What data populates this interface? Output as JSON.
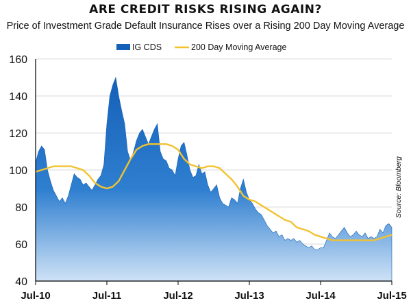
{
  "title": "ARE CREDIT RISKS RISING AGAIN?",
  "subtitle": "Price of Investment Grade Default Insurance Rises over a Rising 200 Day Moving Average",
  "source": "Source: Bloomberg",
  "colors": {
    "area_top": "#1560b8",
    "area_bottom": "#cfe2f6",
    "average": "#f2c230",
    "grid": "#d9d9d9",
    "axis": "#000000"
  },
  "chart_data": {
    "type": "area",
    "xlabel": "",
    "ylabel": "",
    "ylim": [
      40,
      160
    ],
    "yticks": [
      40,
      60,
      80,
      100,
      120,
      140,
      160
    ],
    "xticks": [
      {
        "label": "Jul-10",
        "t": 0
      },
      {
        "label": "Jul-11",
        "t": 12
      },
      {
        "label": "Jul-12",
        "t": 24
      },
      {
        "label": "Jul-13",
        "t": 36
      },
      {
        "label": "Jul-14",
        "t": 48
      },
      {
        "label": "Jul-15",
        "t": 60
      }
    ],
    "xlim": [
      0,
      60
    ],
    "legend_position": "top-center",
    "grid": "horizontal",
    "series": [
      {
        "name": "IG CDS",
        "kind": "area",
        "x": [
          0,
          0.5,
          1,
          1.5,
          2,
          2.5,
          3,
          3.5,
          4,
          4.5,
          5,
          5.5,
          6,
          6.5,
          7,
          7.5,
          8,
          8.5,
          9,
          9.5,
          10,
          10.5,
          11,
          11.5,
          12,
          12.5,
          13,
          13.5,
          14,
          14.5,
          15,
          15.5,
          16,
          16.5,
          17,
          17.5,
          18,
          18.5,
          19,
          19.5,
          20,
          20.5,
          21,
          21.5,
          22,
          22.5,
          23,
          23.5,
          24,
          24.5,
          25,
          25.5,
          26,
          26.5,
          27,
          27.5,
          28,
          28.5,
          29,
          29.5,
          30,
          30.5,
          31,
          31.5,
          32,
          32.5,
          33,
          33.5,
          34,
          34.5,
          35,
          35.5,
          36,
          36.5,
          37,
          37.5,
          38,
          38.5,
          39,
          39.5,
          40,
          40.5,
          41,
          41.5,
          42,
          42.5,
          43,
          43.5,
          44,
          44.5,
          45,
          45.5,
          46,
          46.5,
          47,
          47.5,
          48,
          48.5,
          49,
          49.5,
          50,
          50.5,
          51,
          51.5,
          52,
          52.5,
          53,
          53.5,
          54,
          54.5,
          55,
          55.5,
          56,
          56.5,
          57,
          57.5,
          58,
          58.5,
          59,
          59.5,
          60
        ],
        "values": [
          104,
          110,
          113,
          111,
          100,
          94,
          89,
          86,
          83,
          85,
          82,
          86,
          92,
          98,
          96,
          95,
          92,
          93,
          91,
          89,
          92,
          95,
          97,
          103,
          125,
          140,
          146,
          150,
          140,
          132,
          125,
          110,
          105,
          110,
          116,
          120,
          122,
          118,
          114,
          118,
          122,
          125,
          110,
          106,
          105,
          101,
          100,
          97,
          106,
          113,
          115,
          108,
          100,
          96,
          97,
          103,
          98,
          99,
          92,
          88,
          90,
          92,
          85,
          82,
          81,
          80,
          85,
          84,
          82,
          90,
          95,
          88,
          84,
          82,
          79,
          77,
          76,
          73,
          70,
          68,
          66,
          67,
          64,
          65,
          62,
          63,
          62,
          63,
          61,
          62,
          60,
          59,
          58,
          59,
          57,
          57,
          58,
          58,
          62,
          66,
          64,
          63,
          65,
          67,
          69,
          66,
          64,
          65,
          67,
          65,
          64,
          66,
          63,
          64,
          63,
          64,
          68,
          66,
          70,
          71,
          69
        ]
      },
      {
        "name": "200 Day Moving Average",
        "kind": "line",
        "x": [
          0,
          1,
          2,
          3,
          4,
          5,
          6,
          7,
          8,
          9,
          10,
          11,
          12,
          13,
          14,
          15,
          16,
          17,
          18,
          19,
          20,
          21,
          22,
          23,
          24,
          25,
          26,
          27,
          28,
          29,
          30,
          31,
          32,
          33,
          34,
          35,
          36,
          37,
          38,
          39,
          40,
          41,
          42,
          43,
          44,
          45,
          46,
          47,
          48,
          49,
          50,
          51,
          52,
          53,
          54,
          55,
          56,
          57,
          58,
          59,
          60
        ],
        "values": [
          99,
          100,
          101,
          102,
          102,
          102,
          102,
          101,
          100,
          97,
          93,
          91,
          90,
          91,
          94,
          100,
          106,
          111,
          113,
          114,
          114,
          114,
          114,
          113,
          111,
          106,
          103,
          102,
          101,
          102,
          102,
          101,
          98,
          95,
          91,
          86,
          84,
          83,
          81,
          79,
          77,
          75,
          73,
          72,
          69,
          68,
          67,
          65,
          64,
          63,
          62,
          62,
          62,
          62,
          62,
          62,
          62,
          62,
          63,
          64,
          65
        ]
      }
    ]
  }
}
